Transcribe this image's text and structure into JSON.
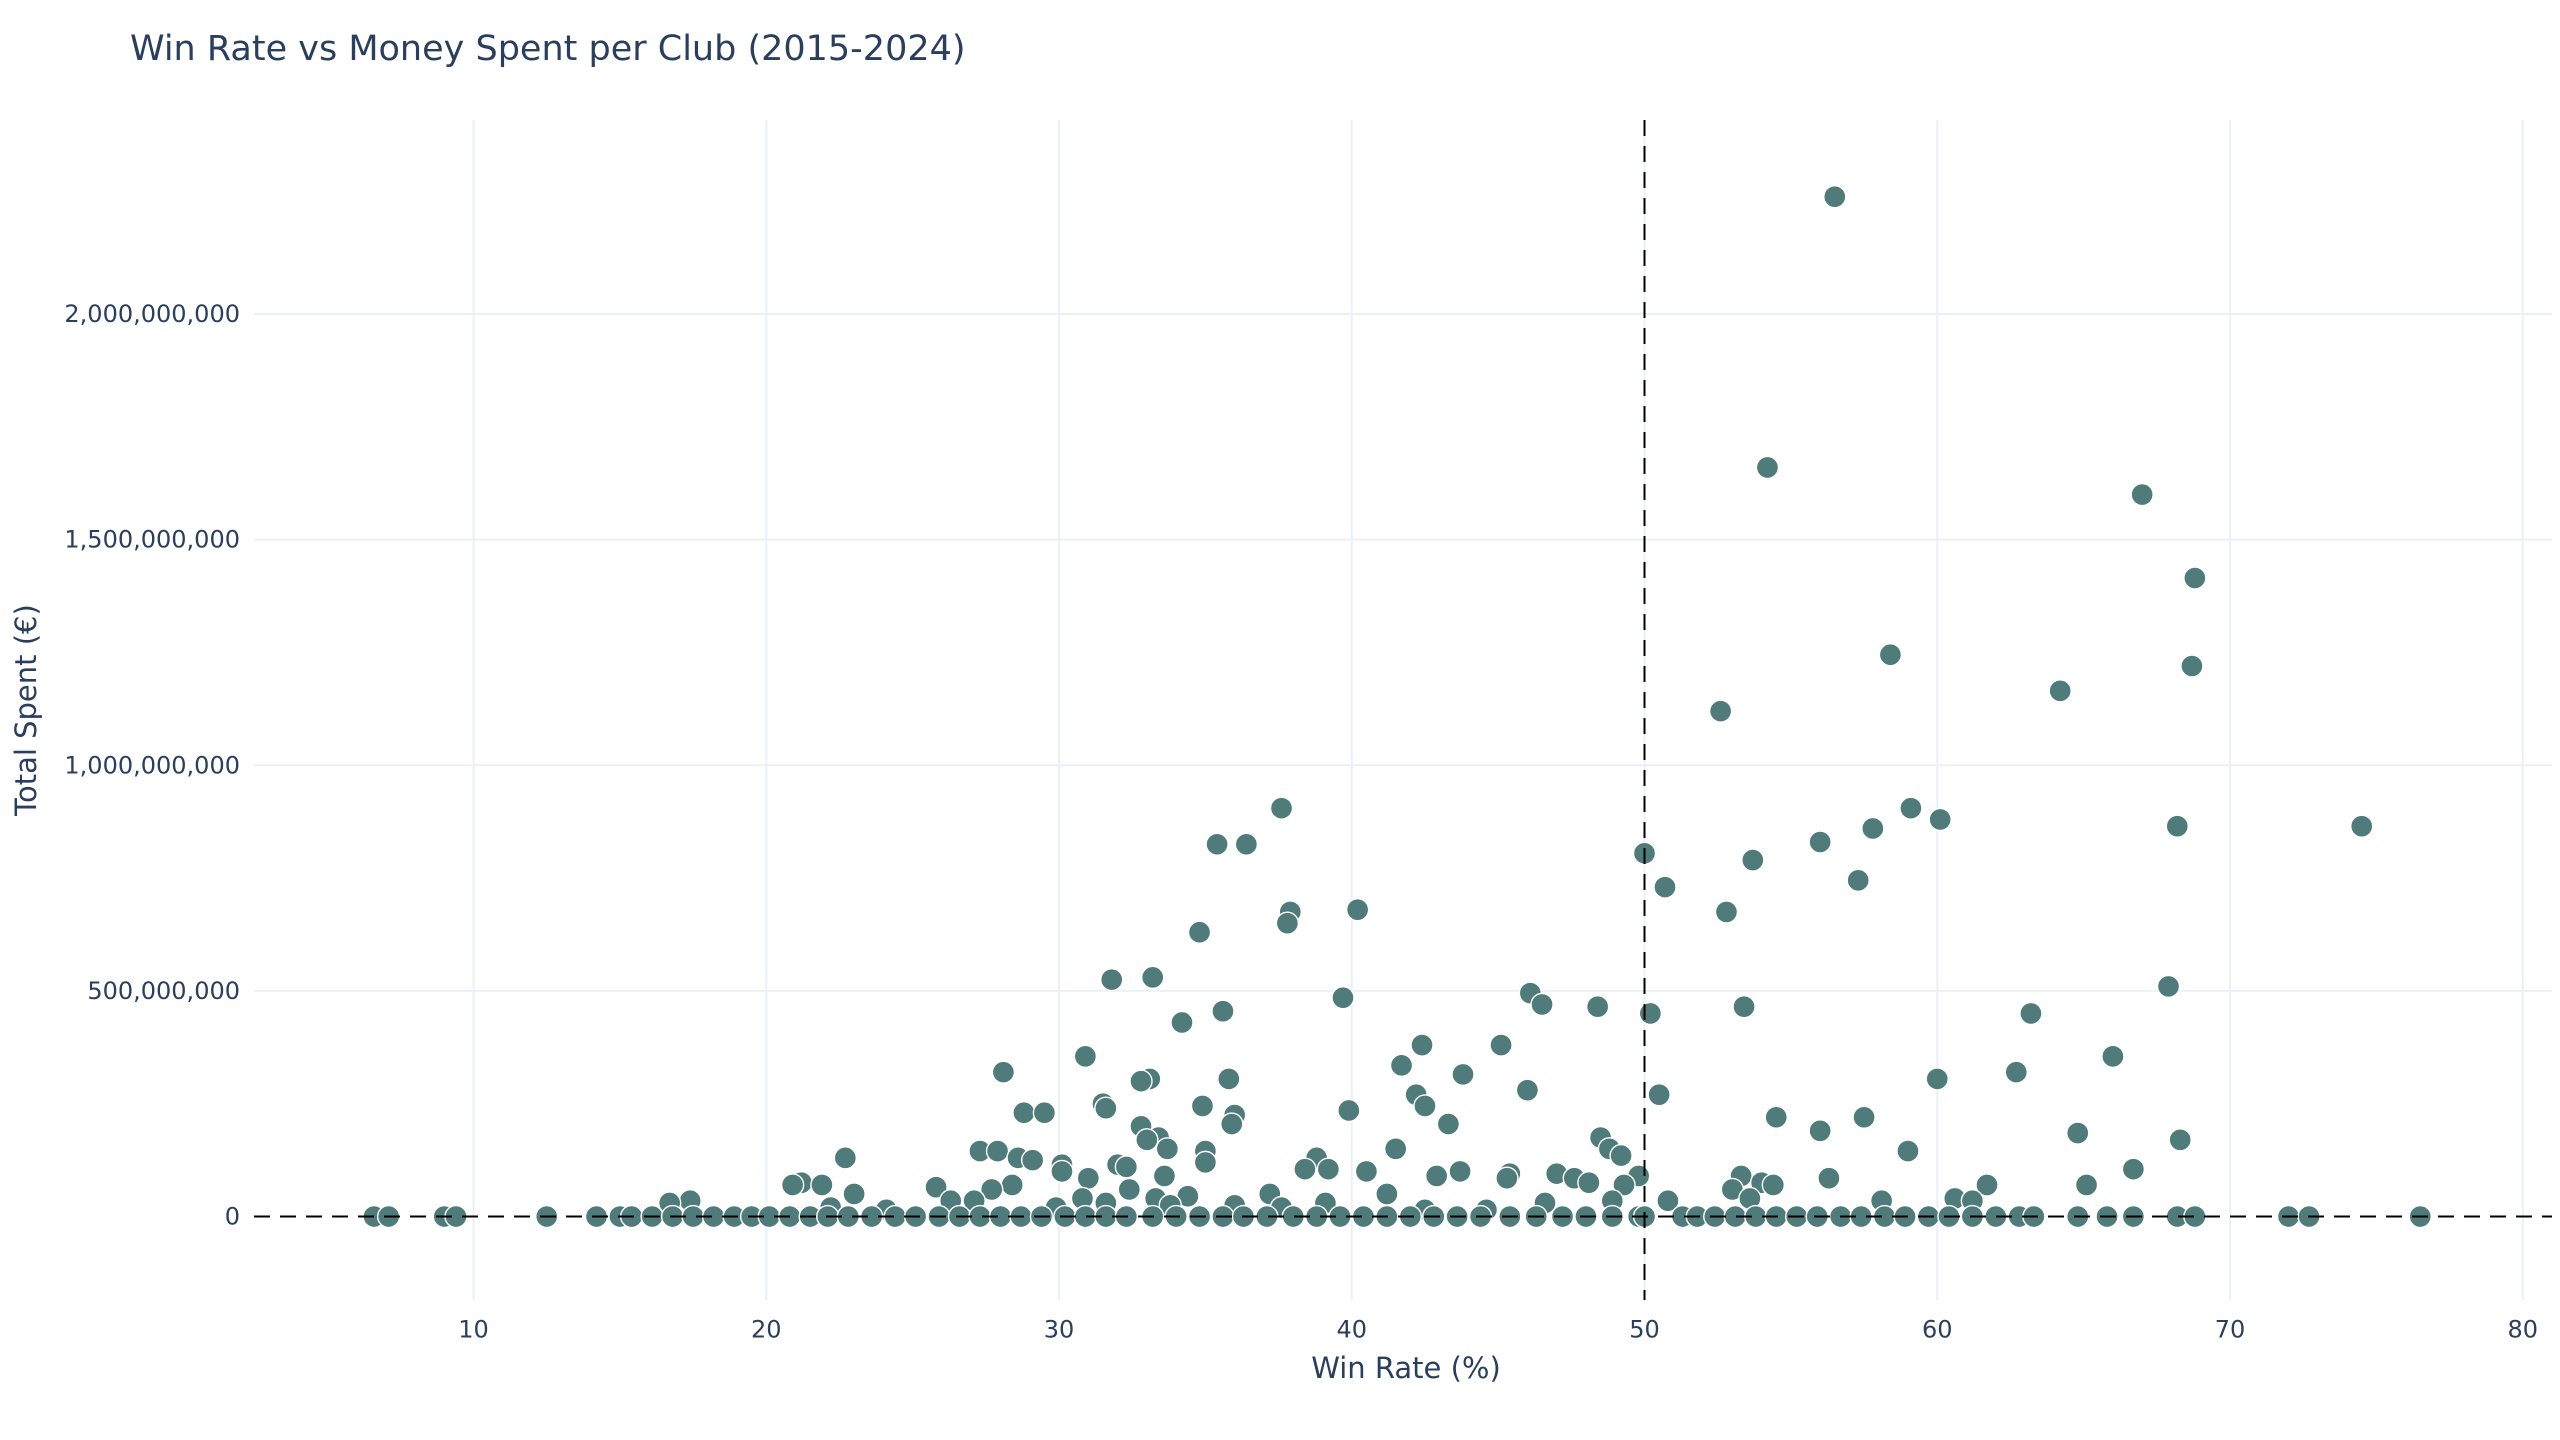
{
  "chart_data": {
    "type": "scatter",
    "title": "Win Rate vs Money Spent per Club (2015-2024)",
    "xlabel": "Win Rate (%)",
    "ylabel": "Total Spent (€)",
    "xlim": [
      2.5,
      81
    ],
    "ylim": [
      -185000000,
      2430000000
    ],
    "xticks": [
      10,
      20,
      30,
      40,
      50,
      60,
      70,
      80
    ],
    "yticks": [
      0,
      500000000,
      1000000000,
      1500000000,
      2000000000
    ],
    "ytick_labels": [
      "0",
      "500,000,000",
      "1,000,000,000",
      "1,500,000,000",
      "2,000,000,000"
    ],
    "grid": true,
    "marker_color": "#4f7b7a",
    "reference_lines": {
      "x": 50,
      "y": 0,
      "style": "dashed",
      "color": "#000000"
    },
    "points": [
      [
        56.5,
        2260000000
      ],
      [
        54.2,
        1660000000
      ],
      [
        67.0,
        1600000000
      ],
      [
        68.8,
        1415000000
      ],
      [
        58.4,
        1245000000
      ],
      [
        68.7,
        1220000000
      ],
      [
        52.6,
        1120000000
      ],
      [
        64.2,
        1165000000
      ],
      [
        37.6,
        905000000
      ],
      [
        59.1,
        905000000
      ],
      [
        60.1,
        880000000
      ],
      [
        74.5,
        865000000
      ],
      [
        68.2,
        865000000
      ],
      [
        57.8,
        860000000
      ],
      [
        35.4,
        825000000
      ],
      [
        36.4,
        825000000
      ],
      [
        56.0,
        830000000
      ],
      [
        50.0,
        805000000
      ],
      [
        53.7,
        790000000
      ],
      [
        57.3,
        745000000
      ],
      [
        50.7,
        730000000
      ],
      [
        37.9,
        675000000
      ],
      [
        40.2,
        680000000
      ],
      [
        52.8,
        675000000
      ],
      [
        37.8,
        650000000
      ],
      [
        34.8,
        630000000
      ],
      [
        31.8,
        525000000
      ],
      [
        33.2,
        530000000
      ],
      [
        67.9,
        510000000
      ],
      [
        39.7,
        485000000
      ],
      [
        46.1,
        495000000
      ],
      [
        46.5,
        470000000
      ],
      [
        48.4,
        465000000
      ],
      [
        53.4,
        465000000
      ],
      [
        35.6,
        455000000
      ],
      [
        50.2,
        450000000
      ],
      [
        63.2,
        450000000
      ],
      [
        34.2,
        430000000
      ],
      [
        42.4,
        380000000
      ],
      [
        45.1,
        380000000
      ],
      [
        30.9,
        355000000
      ],
      [
        66.0,
        355000000
      ],
      [
        41.7,
        335000000
      ],
      [
        43.8,
        315000000
      ],
      [
        62.7,
        320000000
      ],
      [
        28.1,
        320000000
      ],
      [
        60.0,
        305000000
      ],
      [
        35.8,
        305000000
      ],
      [
        33.1,
        305000000
      ],
      [
        32.8,
        300000000
      ],
      [
        46.0,
        280000000
      ],
      [
        42.2,
        270000000
      ],
      [
        50.5,
        270000000
      ],
      [
        31.5,
        250000000
      ],
      [
        34.9,
        245000000
      ],
      [
        42.5,
        245000000
      ],
      [
        31.6,
        240000000
      ],
      [
        39.9,
        235000000
      ],
      [
        28.8,
        230000000
      ],
      [
        29.5,
        230000000
      ],
      [
        36.0,
        225000000
      ],
      [
        54.5,
        220000000
      ],
      [
        57.5,
        220000000
      ],
      [
        43.3,
        205000000
      ],
      [
        35.9,
        205000000
      ],
      [
        32.8,
        200000000
      ],
      [
        56.0,
        190000000
      ],
      [
        64.8,
        185000000
      ],
      [
        33.4,
        175000000
      ],
      [
        33.0,
        170000000
      ],
      [
        48.5,
        175000000
      ],
      [
        68.3,
        170000000
      ],
      [
        41.5,
        150000000
      ],
      [
        48.8,
        150000000
      ],
      [
        59.0,
        145000000
      ],
      [
        27.3,
        145000000
      ],
      [
        27.9,
        145000000
      ],
      [
        33.7,
        150000000
      ],
      [
        35.0,
        145000000
      ],
      [
        49.2,
        135000000
      ],
      [
        22.7,
        130000000
      ],
      [
        28.6,
        130000000
      ],
      [
        29.1,
        125000000
      ],
      [
        38.8,
        130000000
      ],
      [
        35.0,
        120000000
      ],
      [
        32.0,
        115000000
      ],
      [
        32.3,
        110000000
      ],
      [
        30.1,
        115000000
      ],
      [
        38.4,
        105000000
      ],
      [
        39.2,
        105000000
      ],
      [
        40.5,
        100000000
      ],
      [
        43.7,
        100000000
      ],
      [
        66.7,
        105000000
      ],
      [
        30.1,
        100000000
      ],
      [
        45.4,
        95000000
      ],
      [
        47.0,
        95000000
      ],
      [
        42.9,
        90000000
      ],
      [
        45.3,
        85000000
      ],
      [
        47.6,
        85000000
      ],
      [
        53.3,
        90000000
      ],
      [
        56.3,
        85000000
      ],
      [
        31.0,
        85000000
      ],
      [
        33.6,
        90000000
      ],
      [
        49.8,
        90000000
      ],
      [
        21.2,
        75000000
      ],
      [
        20.9,
        70000000
      ],
      [
        21.9,
        70000000
      ],
      [
        28.4,
        70000000
      ],
      [
        54.0,
        75000000
      ],
      [
        54.4,
        70000000
      ],
      [
        61.7,
        70000000
      ],
      [
        65.1,
        70000000
      ],
      [
        48.1,
        75000000
      ],
      [
        49.3,
        70000000
      ],
      [
        25.8,
        65000000
      ],
      [
        27.7,
        60000000
      ],
      [
        32.4,
        60000000
      ],
      [
        53.0,
        60000000
      ],
      [
        37.2,
        50000000
      ],
      [
        41.2,
        50000000
      ],
      [
        23.0,
        50000000
      ],
      [
        34.4,
        45000000
      ],
      [
        30.8,
        40000000
      ],
      [
        33.3,
        40000000
      ],
      [
        50.8,
        35000000
      ],
      [
        53.6,
        40000000
      ],
      [
        58.1,
        35000000
      ],
      [
        60.6,
        40000000
      ],
      [
        61.2,
        35000000
      ],
      [
        17.4,
        35000000
      ],
      [
        16.7,
        30000000
      ],
      [
        26.3,
        35000000
      ],
      [
        27.1,
        35000000
      ],
      [
        31.6,
        30000000
      ],
      [
        39.1,
        30000000
      ],
      [
        46.6,
        30000000
      ],
      [
        48.9,
        35000000
      ],
      [
        36.0,
        25000000
      ],
      [
        37.6,
        20000000
      ],
      [
        33.8,
        25000000
      ],
      [
        22.2,
        20000000
      ],
      [
        24.1,
        15000000
      ],
      [
        29.9,
        20000000
      ],
      [
        42.5,
        15000000
      ],
      [
        44.6,
        15000000
      ],
      [
        6.6,
        0
      ],
      [
        7.1,
        0
      ],
      [
        9.0,
        0
      ],
      [
        9.4,
        0
      ],
      [
        12.5,
        0
      ],
      [
        14.2,
        0
      ],
      [
        15.0,
        0
      ],
      [
        15.4,
        0
      ],
      [
        16.1,
        0
      ],
      [
        16.8,
        0
      ],
      [
        17.5,
        0
      ],
      [
        18.2,
        0
      ],
      [
        18.9,
        0
      ],
      [
        19.5,
        0
      ],
      [
        20.1,
        0
      ],
      [
        20.8,
        0
      ],
      [
        21.5,
        0
      ],
      [
        22.1,
        0
      ],
      [
        22.8,
        0
      ],
      [
        23.6,
        0
      ],
      [
        24.4,
        0
      ],
      [
        25.1,
        0
      ],
      [
        25.9,
        0
      ],
      [
        26.6,
        0
      ],
      [
        27.3,
        0
      ],
      [
        28.0,
        0
      ],
      [
        28.7,
        0
      ],
      [
        29.4,
        0
      ],
      [
        30.2,
        0
      ],
      [
        30.9,
        0
      ],
      [
        31.6,
        0
      ],
      [
        32.3,
        0
      ],
      [
        33.2,
        0
      ],
      [
        34.0,
        0
      ],
      [
        34.8,
        0
      ],
      [
        35.6,
        0
      ],
      [
        36.3,
        0
      ],
      [
        37.1,
        0
      ],
      [
        38.0,
        0
      ],
      [
        38.8,
        0
      ],
      [
        39.6,
        0
      ],
      [
        40.4,
        0
      ],
      [
        41.2,
        0
      ],
      [
        42.0,
        0
      ],
      [
        42.8,
        0
      ],
      [
        43.6,
        0
      ],
      [
        44.4,
        0
      ],
      [
        45.4,
        0
      ],
      [
        46.3,
        0
      ],
      [
        47.2,
        0
      ],
      [
        48.0,
        0
      ],
      [
        48.9,
        0
      ],
      [
        49.8,
        0
      ],
      [
        50.0,
        0
      ],
      [
        51.3,
        0
      ],
      [
        51.8,
        0
      ],
      [
        52.4,
        0
      ],
      [
        53.1,
        0
      ],
      [
        53.8,
        0
      ],
      [
        54.5,
        0
      ],
      [
        55.2,
        0
      ],
      [
        55.9,
        0
      ],
      [
        56.7,
        0
      ],
      [
        57.4,
        0
      ],
      [
        58.2,
        0
      ],
      [
        58.9,
        0
      ],
      [
        59.7,
        0
      ],
      [
        60.4,
        0
      ],
      [
        61.2,
        0
      ],
      [
        62.0,
        0
      ],
      [
        62.8,
        0
      ],
      [
        63.3,
        0
      ],
      [
        64.8,
        0
      ],
      [
        65.8,
        0
      ],
      [
        66.7,
        0
      ],
      [
        68.2,
        0
      ],
      [
        68.8,
        0
      ],
      [
        72.0,
        0
      ],
      [
        72.7,
        0
      ],
      [
        76.5,
        0
      ]
    ]
  }
}
